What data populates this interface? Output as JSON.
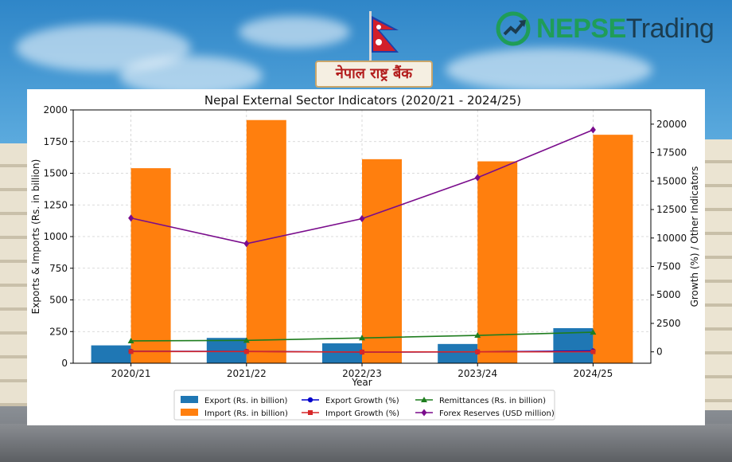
{
  "background": {
    "bank_sign": "नेपाल राष्ट्र बैंक",
    "brand": {
      "part1": "NEPSE",
      "part2": "Trading"
    }
  },
  "chart_data": {
    "type": "bar",
    "title": "Nepal External Sector Indicators (2020/21 - 2024/25)",
    "xlabel": "Year",
    "ylabel": "Exports & Imports (Rs. in billion)",
    "y2label": "Growth (%) / Other Indicators",
    "categories": [
      "2020/21",
      "2021/22",
      "2022/23",
      "2023/24",
      "2024/25"
    ],
    "ylim": [
      0,
      2000
    ],
    "yticks": [
      0,
      250,
      500,
      750,
      1000,
      1250,
      1500,
      1750,
      2000
    ],
    "y2lim": [
      -1000,
      21250
    ],
    "y2ticks": [
      0,
      2500,
      5000,
      7500,
      10000,
      12500,
      15000,
      17500,
      20000
    ],
    "grid": true,
    "bar_series": [
      {
        "name": "Export (Rs. in billion)",
        "color": "#1f77b4",
        "values": [
          141,
          200,
          157,
          152,
          277
        ]
      },
      {
        "name": "Import (Rs. in billion)",
        "color": "#ff7f0e",
        "values": [
          1540,
          1920,
          1611,
          1594,
          1804
        ]
      }
    ],
    "line_series": [
      {
        "name": "Export Growth (%)",
        "color": "#0000cc",
        "marker": "circle",
        "values": [
          44,
          41,
          -21,
          -3,
          82
        ]
      },
      {
        "name": "Import Growth (%)",
        "color": "#d62728",
        "marker": "square",
        "values": [
          28,
          25,
          -16,
          -1,
          13
        ]
      },
      {
        "name": "Remittances (Rs. in billion)",
        "color": "#1e7d1e",
        "marker": "triangle",
        "values": [
          961,
          1007,
          1220,
          1445,
          1723
        ]
      },
      {
        "name": "Forex Reserves (USD million)",
        "color": "#7a0c8c",
        "marker": "diamond",
        "values": [
          11750,
          9500,
          11700,
          15300,
          19500
        ]
      }
    ],
    "legend": {
      "position": "bottom-center",
      "order": [
        "Export (Rs. in billion)",
        "Import (Rs. in billion)",
        "Export Growth (%)",
        "Import Growth (%)",
        "Remittances (Rs. in billion)",
        "Forex Reserves (USD million)"
      ]
    }
  }
}
